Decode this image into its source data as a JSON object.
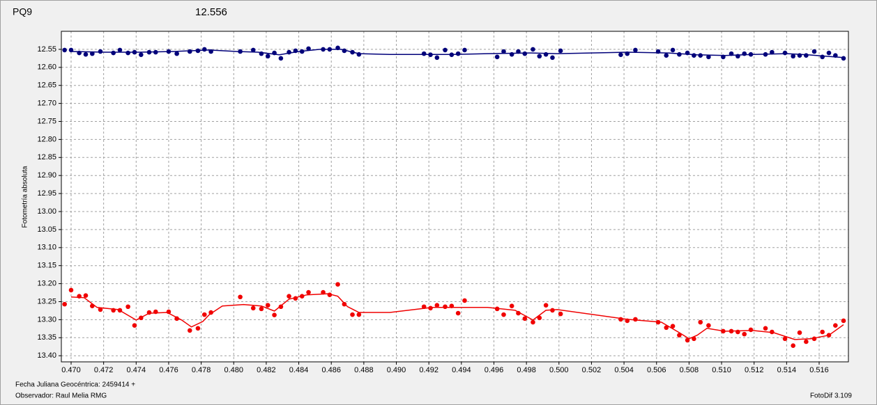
{
  "chart_data": {
    "type": "scatter",
    "title": "PQ9",
    "subtitle": "12.556",
    "title_color": "#e00000",
    "subtitle_color": "#00007a",
    "ylabel": "Fotometría absoluta",
    "xlabel": "Fecha Juliana Geocéntrica: 2459414 +",
    "annotations": [
      "Observador: Raul Melia RMG",
      "FotoDif 3.109"
    ],
    "grid": true,
    "y_inverted": true,
    "xlim": [
      0.4694,
      0.5178
    ],
    "ylim": [
      12.5,
      13.417
    ],
    "xticks": [
      {
        "value": 0.47,
        "label": "0.470"
      },
      0.472,
      0.474,
      0.476,
      0.478,
      {
        "value": 0.48,
        "label": "0.480"
      },
      0.482,
      0.484,
      0.486,
      0.488,
      {
        "value": 0.49,
        "label": "0.490"
      },
      0.492,
      0.494,
      0.496,
      0.498,
      {
        "value": 0.5,
        "label": "0.500"
      },
      0.502,
      0.504,
      0.506,
      0.508,
      {
        "value": 0.51,
        "label": "0.510"
      },
      0.512,
      0.514,
      0.516
    ],
    "yticks": [
      12.55,
      {
        "value": 12.6,
        "label": "12.60"
      },
      12.65,
      {
        "value": 12.7,
        "label": "12.70"
      },
      12.75,
      {
        "value": 12.8,
        "label": "12.80"
      },
      12.85,
      {
        "value": 12.9,
        "label": "12.90"
      },
      12.95,
      {
        "value": 13,
        "label": "13.00"
      },
      13.05,
      {
        "value": 13.1,
        "label": "13.10"
      },
      13.15,
      {
        "value": 13.2,
        "label": "13.20"
      },
      13.25,
      {
        "value": 13.3,
        "label": "13.30"
      },
      13.35,
      {
        "value": 13.4,
        "label": "13.40"
      }
    ],
    "x": [
      0.4696,
      0.47,
      0.4705,
      0.4709,
      0.4713,
      0.4718,
      0.4726,
      0.473,
      0.4735,
      0.4739,
      0.4743,
      0.4748,
      0.4752,
      0.476,
      0.4765,
      0.4773,
      0.4778,
      0.4782,
      0.4786,
      0.4804,
      0.4812,
      0.4817,
      0.4821,
      0.4825,
      0.4829,
      0.4834,
      0.4838,
      0.4842,
      0.4846,
      0.4855,
      0.4859,
      0.4864,
      0.4868,
      0.4873,
      0.4877,
      0.4917,
      0.4921,
      0.4925,
      0.493,
      0.4934,
      0.4938,
      0.4942,
      0.4962,
      0.4966,
      0.4971,
      0.4975,
      0.4979,
      0.4984,
      0.4988,
      0.4992,
      0.4996,
      0.5001,
      0.5038,
      0.5042,
      0.5047,
      0.5061,
      0.5066,
      0.507,
      0.5074,
      0.5079,
      0.5083,
      0.5087,
      0.5092,
      0.5101,
      0.5106,
      0.511,
      0.5114,
      0.5118,
      0.5127,
      0.5131,
      0.5139,
      0.5144,
      0.5148,
      0.5152,
      0.5157,
      0.5162,
      0.5166,
      0.517,
      0.5175
    ],
    "series": [
      {
        "style": "markers",
        "color": "#00007a",
        "values": [
          12.552,
          12.552,
          12.56,
          12.564,
          12.562,
          12.556,
          12.56,
          12.552,
          12.56,
          12.558,
          12.565,
          12.558,
          12.558,
          12.556,
          12.562,
          12.556,
          12.554,
          12.55,
          12.556,
          12.556,
          12.552,
          12.562,
          12.569,
          12.56,
          12.575,
          12.558,
          12.554,
          12.556,
          12.548,
          12.55,
          12.55,
          12.546,
          12.554,
          12.558,
          12.564,
          12.562,
          12.565,
          12.573,
          12.552,
          12.565,
          12.562,
          12.552,
          12.571,
          12.556,
          12.564,
          12.556,
          12.562,
          12.55,
          12.569,
          12.564,
          12.573,
          12.554,
          12.565,
          12.562,
          12.552,
          12.556,
          12.567,
          12.552,
          12.564,
          12.56,
          12.567,
          12.567,
          12.571,
          12.571,
          12.562,
          12.569,
          12.562,
          12.564,
          12.564,
          12.558,
          12.56,
          12.569,
          12.567,
          12.567,
          12.556,
          12.571,
          12.56,
          12.567,
          12.575
        ]
      },
      {
        "style": "markers",
        "color": "#f00000",
        "values": [
          13.257,
          13.218,
          13.235,
          13.233,
          13.262,
          13.272,
          13.274,
          13.274,
          13.264,
          13.316,
          13.295,
          13.28,
          13.278,
          13.278,
          13.297,
          13.33,
          13.324,
          13.286,
          13.28,
          13.237,
          13.268,
          13.27,
          13.26,
          13.287,
          13.264,
          13.235,
          13.241,
          13.235,
          13.224,
          13.224,
          13.231,
          13.202,
          13.257,
          13.286,
          13.286,
          13.264,
          13.268,
          13.26,
          13.264,
          13.262,
          13.282,
          13.247,
          13.27,
          13.286,
          13.262,
          13.282,
          13.297,
          13.307,
          13.295,
          13.26,
          13.274,
          13.284,
          13.299,
          13.303,
          13.299,
          13.307,
          13.322,
          13.318,
          13.343,
          13.357,
          13.353,
          13.307,
          13.316,
          13.332,
          13.332,
          13.334,
          13.34,
          13.328,
          13.324,
          13.334,
          13.353,
          13.372,
          13.336,
          13.361,
          13.353,
          13.334,
          13.343,
          13.316,
          13.303
        ]
      },
      {
        "style": "line",
        "color": "#00007a",
        "x": [
          0.47,
          0.4721,
          0.4742,
          0.4763,
          0.4785,
          0.4802,
          0.4815,
          0.4828,
          0.484,
          0.4853,
          0.4866,
          0.4877,
          0.4896,
          0.4935,
          0.4956,
          0.4982,
          0.4999,
          0.5042,
          0.5067,
          0.5085,
          0.5102,
          0.5119,
          0.514,
          0.5153,
          0.5175
        ],
        "values": [
          12.556,
          12.558,
          12.558,
          12.556,
          12.552,
          12.556,
          12.558,
          12.565,
          12.556,
          12.55,
          12.55,
          12.562,
          12.564,
          12.564,
          12.562,
          12.56,
          12.562,
          12.558,
          12.56,
          12.565,
          12.567,
          12.564,
          12.562,
          12.565,
          12.573
        ]
      },
      {
        "style": "line",
        "color": "#f00000",
        "x": [
          0.47,
          0.4708,
          0.4716,
          0.4729,
          0.474,
          0.4748,
          0.4759,
          0.4768,
          0.4774,
          0.4781,
          0.4785,
          0.4793,
          0.4806,
          0.4817,
          0.4825,
          0.4834,
          0.4845,
          0.4858,
          0.4864,
          0.487,
          0.4877,
          0.4896,
          0.4922,
          0.4956,
          0.4973,
          0.4984,
          0.4992,
          0.4999,
          0.5042,
          0.5063,
          0.5074,
          0.508,
          0.5085,
          0.5091,
          0.5102,
          0.5119,
          0.5132,
          0.5145,
          0.5155,
          0.5166,
          0.5175
        ],
        "values": [
          13.237,
          13.239,
          13.266,
          13.272,
          13.301,
          13.282,
          13.28,
          13.301,
          13.32,
          13.305,
          13.286,
          13.262,
          13.258,
          13.262,
          13.276,
          13.243,
          13.231,
          13.228,
          13.235,
          13.264,
          13.28,
          13.28,
          13.266,
          13.266,
          13.274,
          13.301,
          13.274,
          13.272,
          13.299,
          13.307,
          13.336,
          13.353,
          13.343,
          13.324,
          13.332,
          13.33,
          13.336,
          13.355,
          13.353,
          13.343,
          13.314
        ]
      }
    ]
  }
}
